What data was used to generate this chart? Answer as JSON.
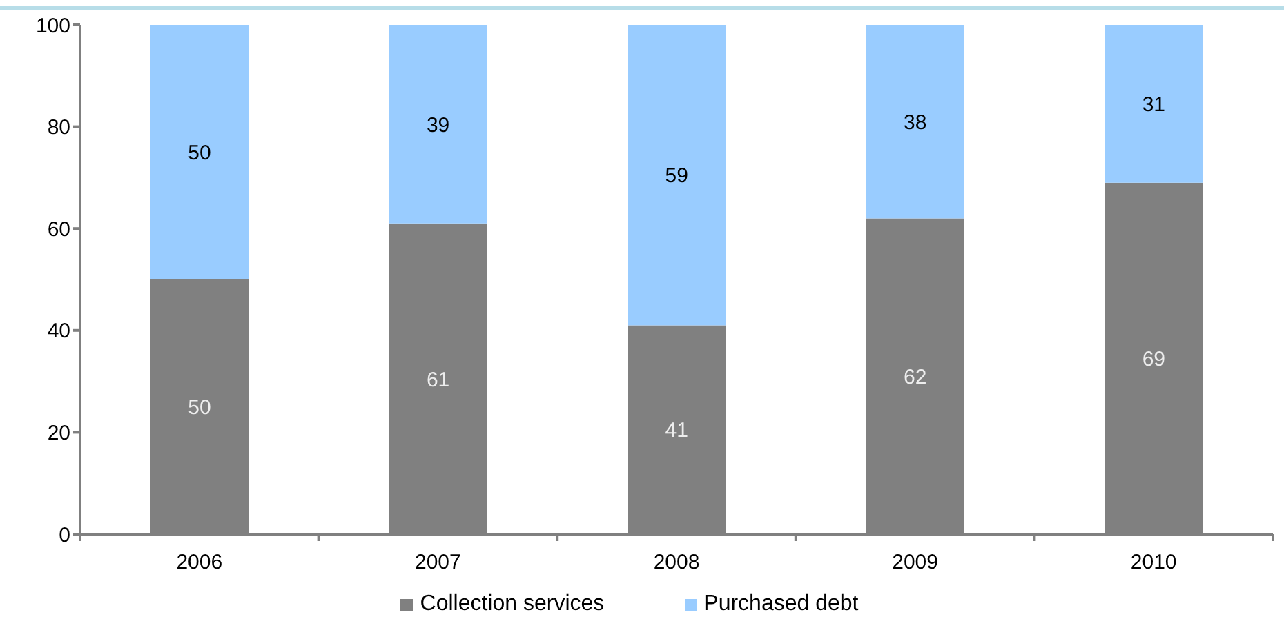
{
  "chart_data": {
    "type": "bar",
    "stacked": true,
    "categories": [
      "2006",
      "2007",
      "2008",
      "2009",
      "2010"
    ],
    "series": [
      {
        "name": "Collection services",
        "color": "#808080",
        "values": [
          50,
          61,
          41,
          62,
          69
        ]
      },
      {
        "name": "Purchased debt",
        "color": "#99ccff",
        "values": [
          50,
          39,
          59,
          38,
          31
        ]
      }
    ],
    "ylim": [
      0,
      100
    ],
    "yticks": [
      0,
      20,
      40,
      60,
      80,
      100
    ],
    "data_labels": true,
    "legend": "bottom"
  }
}
